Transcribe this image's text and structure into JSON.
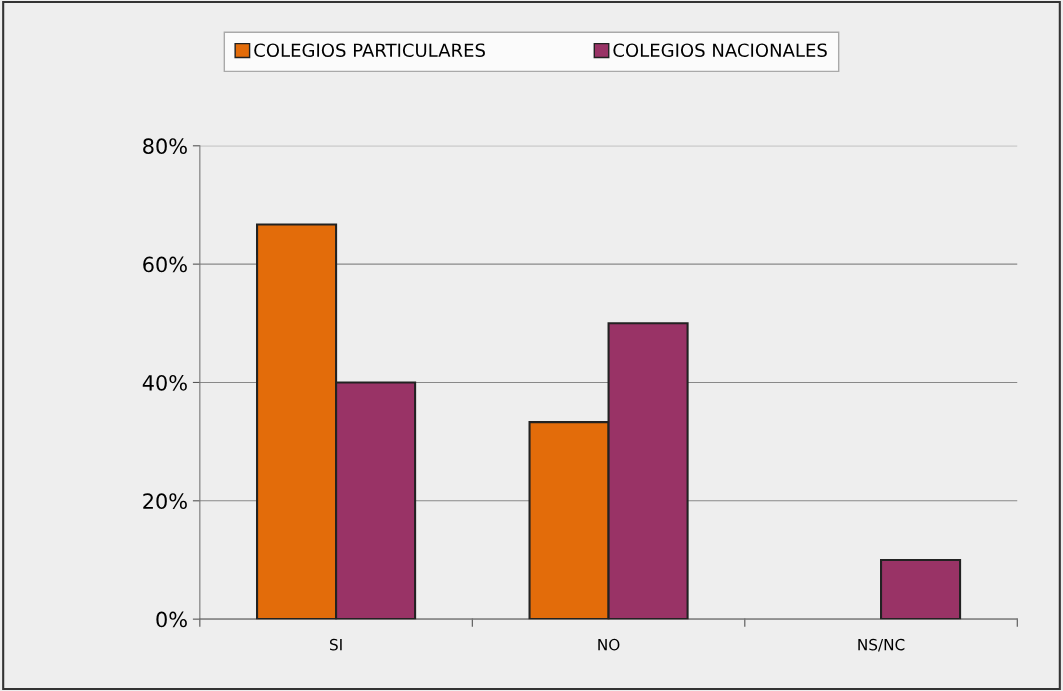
{
  "chart_data": {
    "type": "bar",
    "categories": [
      "SI",
      "NO",
      "NS/NC"
    ],
    "series": [
      {
        "name": "COLEGIOS PARTICULARES",
        "color": "#e36c0a",
        "values": [
          66.7,
          33.3,
          null
        ]
      },
      {
        "name": "COLEGIOS NACIONALES",
        "color": "#993366",
        "values": [
          40,
          50,
          10
        ]
      }
    ],
    "ylim": [
      0,
      80
    ],
    "yticks": [
      {
        "value": 0,
        "label": "0%"
      },
      {
        "value": 20,
        "label": "20%"
      },
      {
        "value": 40,
        "label": "40%"
      },
      {
        "value": 60,
        "label": "60%"
      },
      {
        "value": 80,
        "label": "80%"
      }
    ],
    "grid": "y",
    "legend": "top"
  }
}
